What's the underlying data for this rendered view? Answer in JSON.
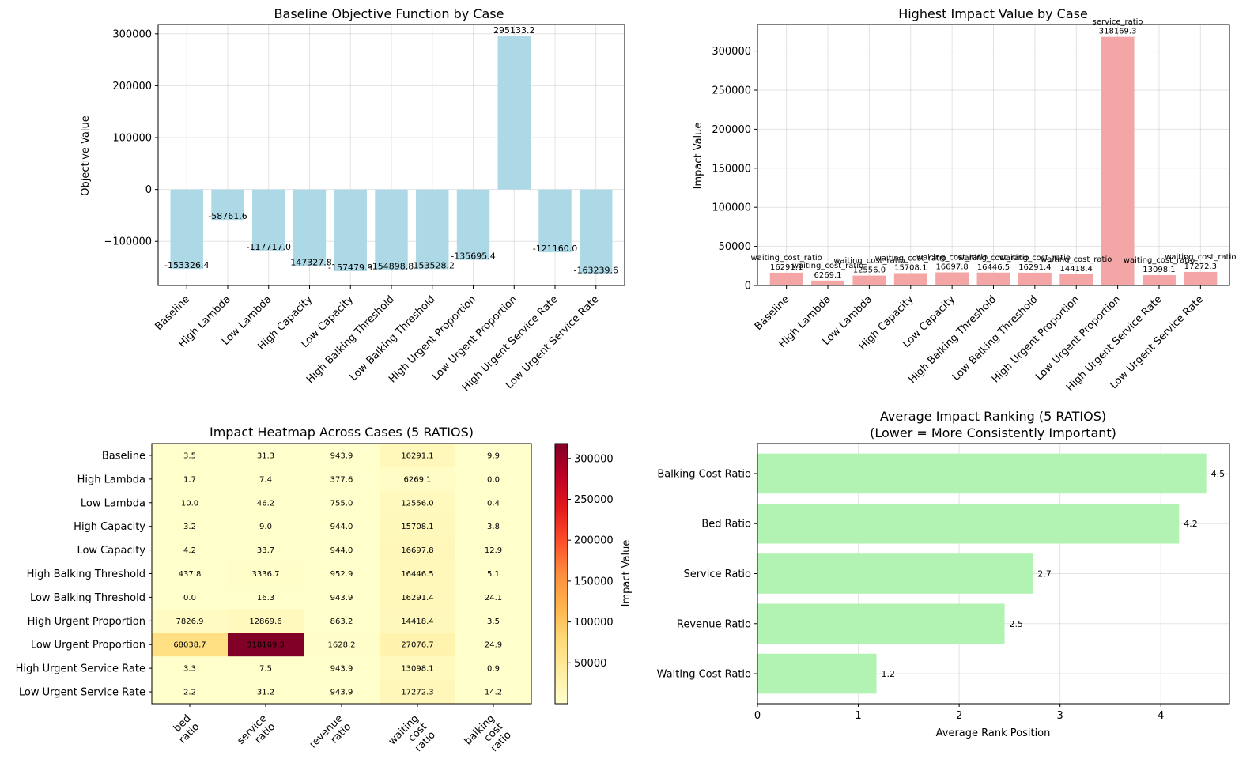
{
  "chart_data": [
    {
      "id": "objective",
      "type": "bar",
      "title": "Baseline Objective Function by Case",
      "xlabel": "",
      "ylabel": "Objective Value",
      "ylim": [
        -185000,
        318000
      ],
      "yticks": [
        -100000,
        0,
        100000,
        200000,
        300000
      ],
      "ytick_labels": [
        "−100000",
        "0",
        "100000",
        "200000",
        "300000"
      ],
      "grid": true,
      "color": "#add8e6",
      "categories": [
        "Baseline",
        "High Lambda",
        "Low Lambda",
        "High Capacity",
        "Low Capacity",
        "High Balking Threshold",
        "Low Balking Threshold",
        "High Urgent Proportion",
        "Low Urgent Proportion",
        "High Urgent Service Rate",
        "Low Urgent Service Rate"
      ],
      "values": [
        -153326.4,
        -58761.6,
        -117717.0,
        -147327.8,
        -157479.9,
        -154898.8,
        -153528.2,
        -135695.4,
        295133.2,
        -121160.0,
        -163239.6
      ],
      "value_labels": [
        "-153326.4",
        "-58761.6",
        "-117717.0",
        "-147327.8",
        "-157479.9",
        "-154898.8",
        "-153528.2",
        "-135695.4",
        "295133.2",
        "-121160.0",
        "-163239.6"
      ]
    },
    {
      "id": "impact",
      "type": "bar",
      "title": "Highest Impact Value by Case",
      "xlabel": "",
      "ylabel": "Impact Value",
      "ylim": [
        0,
        334000
      ],
      "yticks": [
        0,
        50000,
        100000,
        150000,
        200000,
        250000,
        300000
      ],
      "ytick_labels": [
        "0",
        "50000",
        "100000",
        "150000",
        "200000",
        "250000",
        "300000"
      ],
      "grid": true,
      "color": "#f4a6a6",
      "categories": [
        "Baseline",
        "High Lambda",
        "Low Lambda",
        "High Capacity",
        "Low Capacity",
        "High Balking Threshold",
        "Low Balking Threshold",
        "High Urgent Proportion",
        "Low Urgent Proportion",
        "High Urgent Service Rate",
        "Low Urgent Service Rate"
      ],
      "values": [
        16291.1,
        6269.1,
        12556.0,
        15708.1,
        16697.8,
        16446.5,
        16291.4,
        14418.4,
        318169.3,
        13098.1,
        17272.3
      ],
      "value_labels": [
        "16291.1",
        "6269.1",
        "12556.0",
        "15708.1",
        "16697.8",
        "16446.5",
        "16291.4",
        "14418.4",
        "318169.3",
        "13098.1",
        "17272.3"
      ],
      "top_ratio": [
        "waiting_cost_ratio",
        "waiting_cost_ratio",
        "waiting_cost_ratio",
        "waiting_cost_ratio",
        "waiting_cost_ratio",
        "waiting_cost_ratio",
        "waiting_cost_ratio",
        "waiting_cost_ratio",
        "service_ratio",
        "waiting_cost_ratio",
        "waiting_cost_ratio"
      ]
    },
    {
      "id": "heatmap",
      "type": "heatmap",
      "title": "Impact Heatmap Across Cases (5 RATIOS)",
      "rows": [
        "Baseline",
        "High Lambda",
        "Low Lambda",
        "High Capacity",
        "Low Capacity",
        "High Balking Threshold",
        "Low Balking Threshold",
        "High Urgent Proportion",
        "Low Urgent Proportion",
        "High Urgent Service Rate",
        "Low Urgent Service Rate"
      ],
      "columns": [
        [
          "bed",
          "ratio"
        ],
        [
          "service",
          "ratio"
        ],
        [
          "revenue",
          "ratio"
        ],
        [
          "waiting",
          "cost",
          "ratio"
        ],
        [
          "balking",
          "cost",
          "ratio"
        ]
      ],
      "values": [
        [
          3.5,
          31.3,
          943.9,
          16291.1,
          9.9
        ],
        [
          1.7,
          7.4,
          377.6,
          6269.1,
          0.0
        ],
        [
          10.0,
          46.2,
          755.0,
          12556.0,
          0.4
        ],
        [
          3.2,
          9.0,
          944.0,
          15708.1,
          3.8
        ],
        [
          4.2,
          33.7,
          944.0,
          16697.8,
          12.9
        ],
        [
          437.8,
          3336.7,
          952.9,
          16446.5,
          5.1
        ],
        [
          0.0,
          16.3,
          943.9,
          16291.4,
          24.1
        ],
        [
          7826.9,
          12869.6,
          863.2,
          14418.4,
          3.5
        ],
        [
          68038.7,
          318169.3,
          1628.2,
          27076.7,
          24.9
        ],
        [
          3.3,
          7.5,
          943.9,
          13098.1,
          0.9
        ],
        [
          2.2,
          31.2,
          943.9,
          17272.3,
          14.2
        ]
      ],
      "value_labels": [
        [
          "3.5",
          "31.3",
          "943.9",
          "16291.1",
          "9.9"
        ],
        [
          "1.7",
          "7.4",
          "377.6",
          "6269.1",
          "0.0"
        ],
        [
          "10.0",
          "46.2",
          "755.0",
          "12556.0",
          "0.4"
        ],
        [
          "3.2",
          "9.0",
          "944.0",
          "15708.1",
          "3.8"
        ],
        [
          "4.2",
          "33.7",
          "944.0",
          "16697.8",
          "12.9"
        ],
        [
          "437.8",
          "3336.7",
          "952.9",
          "16446.5",
          "5.1"
        ],
        [
          "0.0",
          "16.3",
          "943.9",
          "16291.4",
          "24.1"
        ],
        [
          "7826.9",
          "12869.6",
          "863.2",
          "14418.4",
          "3.5"
        ],
        [
          "68038.7",
          "318169.3",
          "1628.2",
          "27076.7",
          "24.9"
        ],
        [
          "3.3",
          "7.5",
          "943.9",
          "13098.1",
          "0.9"
        ],
        [
          "2.2",
          "31.2",
          "943.9",
          "17272.3",
          "14.2"
        ]
      ],
      "colormap": "YlOrRd",
      "vmin": 0,
      "vmax": 318169.3,
      "colorbar_label": "Impact Value",
      "colorbar_ticks": [
        50000,
        100000,
        150000,
        200000,
        250000,
        300000
      ],
      "colorbar_tick_labels": [
        "50000",
        "100000",
        "150000",
        "200000",
        "250000",
        "300000"
      ]
    },
    {
      "id": "ranking",
      "type": "bar",
      "orientation": "horizontal",
      "title": "Average Impact Ranking (5 RATIOS)",
      "subtitle": "(Lower = More Consistently Important)",
      "xlabel": "Average Rank Position",
      "ylabel": "",
      "xlim": [
        0,
        4.68
      ],
      "xticks": [
        0,
        1,
        2,
        3,
        4
      ],
      "xtick_labels": [
        "0",
        "1",
        "2",
        "3",
        "4"
      ],
      "grid": true,
      "color": "#b2f2b2",
      "categories": [
        "Balking Cost Ratio",
        "Bed Ratio",
        "Service Ratio",
        "Revenue Ratio",
        "Waiting Cost Ratio"
      ],
      "values": [
        4.45,
        4.18,
        2.73,
        2.45,
        1.18
      ],
      "value_labels": [
        "4.5",
        "4.2",
        "2.7",
        "2.5",
        "1.2"
      ]
    }
  ]
}
